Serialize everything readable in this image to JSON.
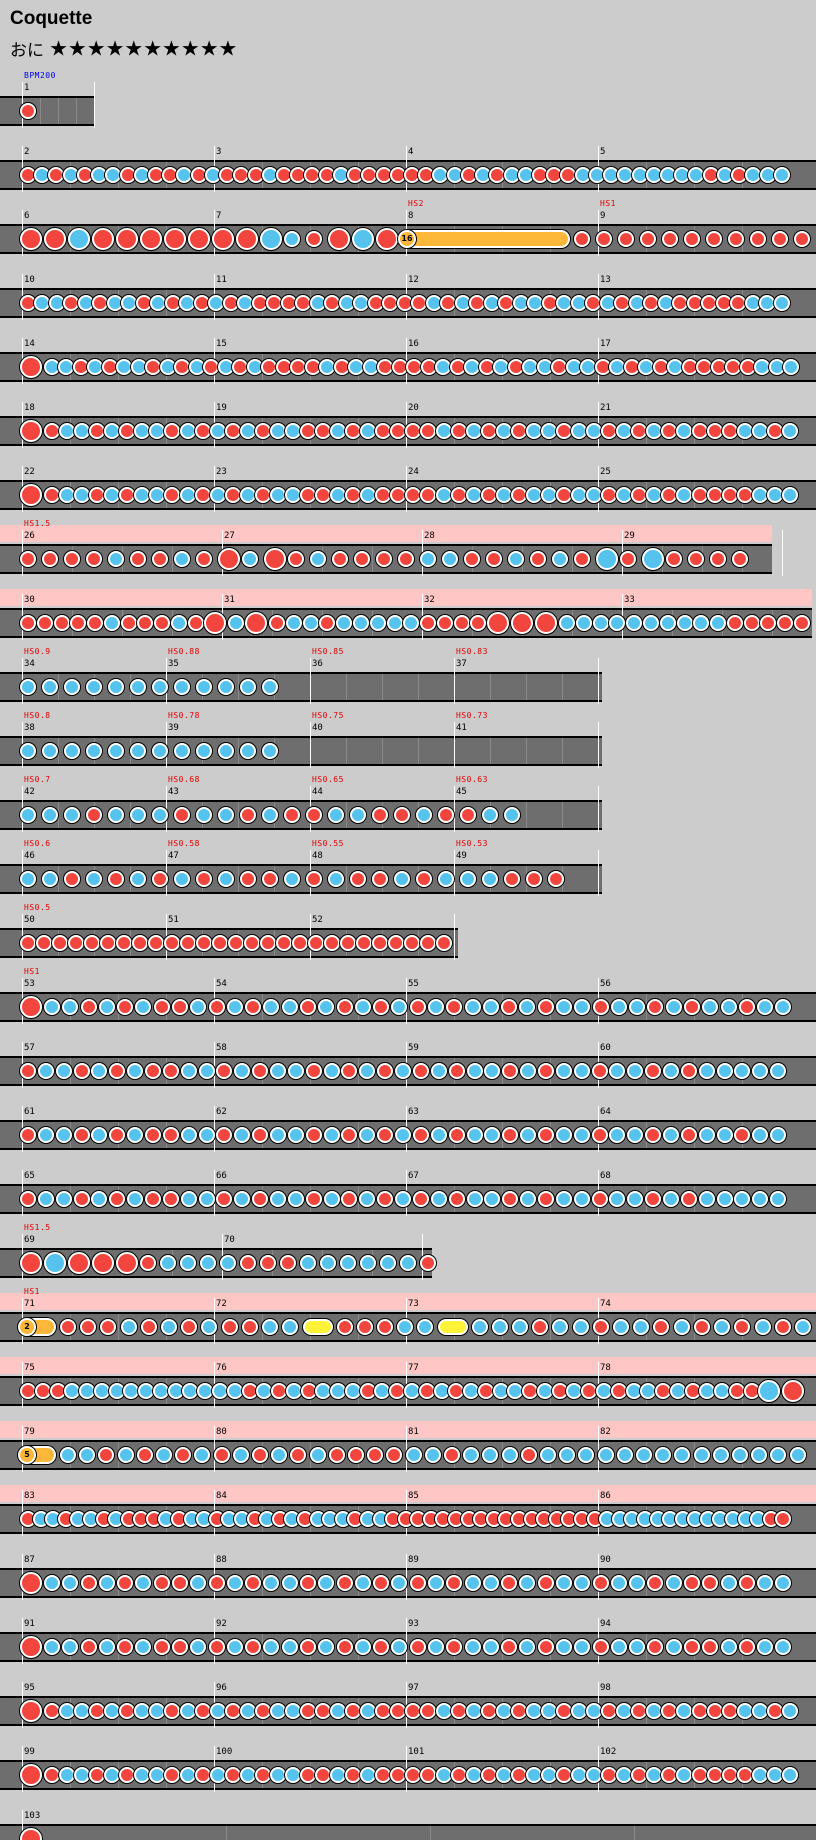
{
  "song_title": "Coquette",
  "difficulty_label": "おに",
  "difficulty_stars": "★★★★★★★★★★",
  "colors": {
    "don": "#f2453d",
    "ka": "#55c3ee",
    "roll": "#fdb83a",
    "balloon": "#fff33a",
    "lane": "#6e6e6e",
    "hs_highlight": "#ffc6c6"
  },
  "rows": [
    {
      "measures": [
        1
      ],
      "widths": [
        72
      ],
      "events": [
        {
          "text": "BPM200",
          "color": "blue"
        }
      ],
      "notes": "d8"
    },
    {
      "measures": [
        2,
        3,
        4,
        5
      ],
      "notes": "dkdkdkkdkd dkdkdddkddddkddd dddkkdkdkkdd dkkkkkkkkkdkdkkk"
    },
    {
      "measures": [
        6,
        7,
        8,
        9
      ],
      "events": [
        null,
        null,
        {
          "text": "HS2",
          "color": "red"
        },
        {
          "text": "HS1",
          "color": "red"
        }
      ],
      "big": true,
      "notes": "DDKDDDDDDDK kdDKDroll16 dddddddddddddd"
    },
    {
      "measures": [
        10,
        11,
        12,
        13
      ],
      "notes": "dkkdkdkkdkdk dkdkddddkdkkdd ddkdkdkdkkdkkdk dkdkdddddkkk"
    },
    {
      "measures": [
        14,
        15,
        16,
        17
      ],
      "notes": "Dkkdkdkkdkdk dkdkddddkdkkdd ddkdkdkdkkdkkdk dkdkdddddkkk"
    },
    {
      "measures": [
        18,
        19,
        20,
        21
      ],
      "notes": "Ddkkdkdkkdkd kdkdkkddkdkdd ddkdkdkdkkdkkdk dkdkdddkkdk"
    },
    {
      "measures": [
        22,
        23,
        24,
        25
      ],
      "notes": "Ddkkdkdkkdkd kdkdkkddkdkdd ddkdkdkdkkdkkdk dkdkddddkkk"
    },
    {
      "measures": [
        26,
        27,
        28,
        29
      ],
      "widths": [
        200,
        200,
        200,
        160
      ],
      "hs": true,
      "events": [
        {
          "text": "HS1.5",
          "color": "red"
        }
      ],
      "notes": "ddddkddkdD kDdkd dddkkddkdk dKdKdddd"
    },
    {
      "measures": [
        30,
        31,
        32,
        33
      ],
      "widths": [
        200,
        200,
        200,
        200
      ],
      "hs": true,
      "notes": "dddddkdddkd DkDdkkdkkkkkd dddDDDkkkkkkkkkkddddddd"
    },
    {
      "measures": [
        34,
        35,
        36,
        37
      ],
      "events": [
        {
          "text": "HS0.9",
          "color": "red"
        },
        {
          "text": "HS0.88",
          "color": "red"
        },
        {
          "text": "HS0.85",
          "color": "red"
        },
        {
          "text": "HS0.83",
          "color": "red"
        }
      ],
      "slow": true,
      "notes": "kkk kkk kkk kk k"
    },
    {
      "measures": [
        38,
        39,
        40,
        41
      ],
      "events": [
        {
          "text": "HS0.8",
          "color": "red"
        },
        {
          "text": "HS0.78",
          "color": "red"
        },
        {
          "text": "HS0.75",
          "color": "red"
        },
        {
          "text": "HS0.73",
          "color": "red"
        }
      ],
      "slow": true,
      "notes": "k kkk kkk kk kkk"
    },
    {
      "measures": [
        42,
        43,
        44,
        45
      ],
      "events": [
        {
          "text": "HS0.7",
          "color": "red"
        },
        {
          "text": "HS0.68",
          "color": "red"
        },
        {
          "text": "HS0.65",
          "color": "red"
        },
        {
          "text": "HS0.63",
          "color": "red"
        }
      ],
      "slow": true,
      "notes": "kkk dkkkdkk dkddkk ddkddkk"
    },
    {
      "measures": [
        46,
        47,
        48,
        49
      ],
      "events": [
        {
          "text": "HS0.6",
          "color": "red"
        },
        {
          "text": "HS0.58",
          "color": "red"
        },
        {
          "text": "HS0.55",
          "color": "red"
        },
        {
          "text": "HS0.53",
          "color": "red"
        }
      ],
      "slow": true,
      "notes": "kkdkdkdkd kddkd kddkdkk kddd"
    },
    {
      "measures": [
        50,
        51,
        52
      ],
      "events": [
        {
          "text": "HS0.5",
          "color": "red"
        }
      ],
      "slow": true,
      "notes": "ddddddddddddddddddddddddddd"
    },
    {
      "measures": [
        53,
        54,
        55,
        56
      ],
      "events": [
        {
          "text": "HS1",
          "color": "red"
        }
      ],
      "notes": "Dkkdkdkddk dkdkkdkdkdk dkdkkdkdkk dkkdkdkkdkk"
    },
    {
      "measures": [
        57,
        58,
        59,
        60
      ],
      "notes": "dkkdkdkddk kdkdkkdkdkdk dkdkkdkdkk dkkdkdkkkkk"
    },
    {
      "measures": [
        61,
        62,
        63,
        64
      ],
      "notes": "dkkdkdkddk kdkdkkdkdkdk dkdkkdkdkk dkkdkdkkdkk"
    },
    {
      "measures": [
        65,
        66,
        67,
        68
      ],
      "notes": "dkkdkdkddk kdkdkkdkdkdk dkdkkdkdkk dkkdkdkkkkk"
    },
    {
      "measures": [
        69,
        70
      ],
      "widths": [
        200,
        200
      ],
      "events": [
        {
          "text": "HS1.5",
          "color": "red"
        }
      ],
      "notes": "DKDDD dkkkkdddkkkkkkd"
    },
    {
      "measures": [
        71,
        72,
        73,
        74
      ],
      "hs": true,
      "events": [
        {
          "text": "HS1",
          "color": "red"
        }
      ],
      "notes": "roll2 dddkdk dkddkkyellow dddkkyellow kkkdkk dkkdkdk dkdkk"
    },
    {
      "measures": [
        75,
        76,
        77,
        78
      ],
      "hs": true,
      "notes": "dddkkkkkkkkkkkk dkdkdkkkdkdkdk dkdkkdkdkdkdkk dkdkkddKD"
    },
    {
      "measures": [
        79,
        80,
        81,
        82
      ],
      "hs": true,
      "notes": "roll5 kkdkdkd kdkdkdkdd ddkkdkkkdkkk kkkkkkkkkkk"
    },
    {
      "measures": [
        83,
        84,
        85,
        86
      ],
      "hs": true,
      "notes": "dkkdkkdkdddkdk kdkkdkdkdkkkdkk ddddddddddddddddd kkkkkkkkkkkkkdd"
    },
    {
      "measures": [
        87,
        88,
        89,
        90
      ],
      "notes": "Dkkdkdkddk dkdkkdkdkdk dkdkkdkdkk dkkdkddkdkk"
    },
    {
      "measures": [
        91,
        92,
        93,
        94
      ],
      "notes": "Dkkdkdkddk dkdkkdkdkdk dkdkkdkdkk dkkdkddkdkk"
    },
    {
      "measures": [
        95,
        96,
        97,
        98
      ],
      "notes": "Ddkkdkdkkdkd kdkdkkddkdkdd ddkdkdkdkkdkkdk dkdkdddkkdk"
    },
    {
      "measures": [
        99,
        100,
        101,
        102
      ],
      "notes": "Ddkkdkdkkdkd kdkdkkddkdkdd ddkdkdkdkkdkkdk dkdkddddkkk"
    },
    {
      "measures": [
        103
      ],
      "widths": [
        816
      ],
      "notes": "D"
    }
  ]
}
